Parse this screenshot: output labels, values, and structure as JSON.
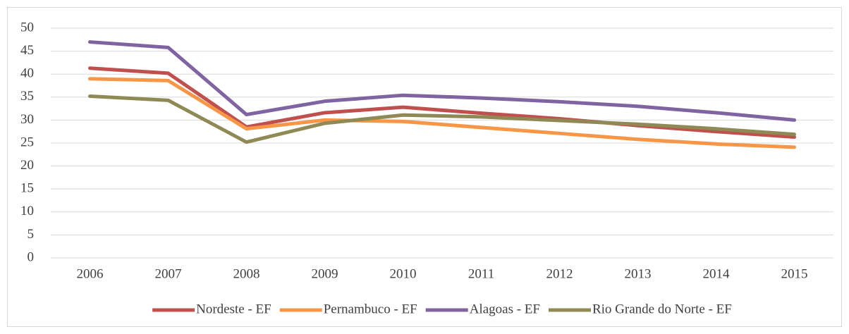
{
  "chart_data": {
    "type": "line",
    "categories": [
      "2006",
      "2007",
      "2008",
      "2009",
      "2010",
      "2011",
      "2012",
      "2013",
      "2014",
      "2015"
    ],
    "series": [
      {
        "name": "Nordeste - EF",
        "color": "#c0504d",
        "values": [
          41.3,
          40.2,
          28.5,
          31.6,
          32.8,
          31.5,
          30.3,
          28.8,
          27.5,
          26.3
        ]
      },
      {
        "name": "Pernambuco - EF",
        "color": "#f79646",
        "values": [
          39.0,
          38.6,
          28.1,
          30.0,
          29.7,
          28.4,
          27.1,
          25.8,
          24.8,
          24.1
        ]
      },
      {
        "name": "Alagoas - EF",
        "color": "#8064a2",
        "values": [
          47.0,
          45.8,
          31.2,
          34.1,
          35.4,
          34.8,
          34.0,
          33.0,
          31.6,
          30.0
        ]
      },
      {
        "name": "Rio Grande do Norte - EF",
        "color": "#8f8a55",
        "values": [
          35.2,
          34.3,
          25.2,
          29.3,
          31.1,
          30.7,
          29.9,
          29.1,
          28.1,
          26.9
        ]
      }
    ],
    "ylim": [
      0,
      50
    ],
    "yticks": [
      0,
      5,
      10,
      15,
      20,
      25,
      30,
      35,
      40,
      45,
      50
    ],
    "grid": true,
    "legend": "bottom"
  }
}
